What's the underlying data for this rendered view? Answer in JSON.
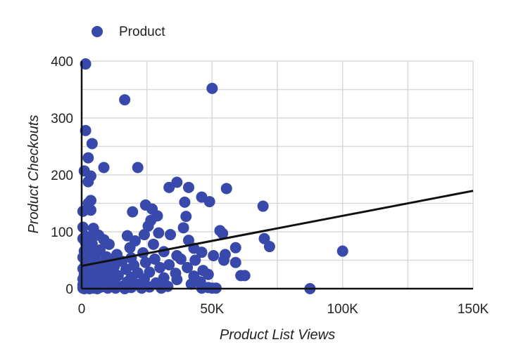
{
  "chart_data": {
    "type": "scatter",
    "title": "",
    "xlabel": "Product List Views",
    "ylabel": "Product Checkouts",
    "xlim": [
      0,
      150000
    ],
    "ylim": [
      0,
      400
    ],
    "x_ticks": [
      0,
      50000,
      100000,
      150000
    ],
    "x_tick_labels": [
      "0",
      "50K",
      "100K",
      "150K"
    ],
    "y_ticks": [
      0,
      100,
      200,
      300,
      400
    ],
    "y_tick_labels": [
      "0",
      "100",
      "200",
      "300",
      "400"
    ],
    "grid": true,
    "legend_position": "top-left",
    "colors": {
      "series": "#3949ab",
      "trendline": "#111111"
    },
    "series": [
      {
        "name": "Product",
        "points": [
          [
            1500,
            395
          ],
          [
            50000,
            352
          ],
          [
            16500,
            332
          ],
          [
            1500,
            278
          ],
          [
            4000,
            255
          ],
          [
            2500,
            230
          ],
          [
            21500,
            213
          ],
          [
            8500,
            213
          ],
          [
            1000,
            207
          ],
          [
            3500,
            198
          ],
          [
            2500,
            188
          ],
          [
            36500,
            187
          ],
          [
            33500,
            178
          ],
          [
            41000,
            178
          ],
          [
            55500,
            176
          ],
          [
            46000,
            161
          ],
          [
            49000,
            153
          ],
          [
            39500,
            152
          ],
          [
            69500,
            145
          ],
          [
            3500,
            155
          ],
          [
            2500,
            150
          ],
          [
            24500,
            147
          ],
          [
            27000,
            140
          ],
          [
            500,
            136
          ],
          [
            3500,
            138
          ],
          [
            19500,
            135
          ],
          [
            29000,
            128
          ],
          [
            40000,
            127
          ],
          [
            26500,
            120
          ],
          [
            25500,
            110
          ],
          [
            39000,
            107
          ],
          [
            500,
            108
          ],
          [
            4500,
            106
          ],
          [
            53000,
            102
          ],
          [
            29500,
            98
          ],
          [
            17500,
            93
          ],
          [
            24000,
            95
          ],
          [
            54000,
            97
          ],
          [
            34000,
            95
          ],
          [
            6500,
            94
          ],
          [
            1500,
            92
          ],
          [
            3000,
            90
          ],
          [
            500,
            88
          ],
          [
            8500,
            86
          ],
          [
            70000,
            88
          ],
          [
            20500,
            84
          ],
          [
            41000,
            85
          ],
          [
            1500,
            81
          ],
          [
            4000,
            79
          ],
          [
            10500,
            78
          ],
          [
            27500,
            78
          ],
          [
            72000,
            74
          ],
          [
            59000,
            72
          ],
          [
            18500,
            72
          ],
          [
            43000,
            71
          ],
          [
            2500,
            70
          ],
          [
            7000,
            68
          ],
          [
            1000,
            66
          ],
          [
            31500,
            65
          ],
          [
            23500,
            63
          ],
          [
            100000,
            66
          ],
          [
            46000,
            64
          ],
          [
            5500,
            61
          ],
          [
            13500,
            60
          ],
          [
            55000,
            60
          ],
          [
            36500,
            58
          ],
          [
            50500,
            58
          ],
          [
            3000,
            57
          ],
          [
            9500,
            56
          ],
          [
            500,
            55
          ],
          [
            19000,
            54
          ],
          [
            28000,
            52
          ],
          [
            38000,
            52
          ],
          [
            43500,
            50
          ],
          [
            54500,
            50
          ],
          [
            11500,
            49
          ],
          [
            15500,
            48
          ],
          [
            4500,
            47
          ],
          [
            24500,
            46
          ],
          [
            7500,
            45
          ],
          [
            59000,
            46
          ],
          [
            1500,
            44
          ],
          [
            33500,
            42
          ],
          [
            20000,
            41
          ],
          [
            2500,
            40
          ],
          [
            12500,
            39
          ],
          [
            30000,
            37
          ],
          [
            40500,
            37
          ],
          [
            9000,
            36
          ],
          [
            500,
            35
          ],
          [
            17000,
            34
          ],
          [
            5500,
            33
          ],
          [
            46500,
            32
          ],
          [
            3000,
            30
          ],
          [
            26000,
            29
          ],
          [
            21500,
            28
          ],
          [
            11000,
            27
          ],
          [
            36000,
            27
          ],
          [
            1000,
            25
          ],
          [
            48500,
            25
          ],
          [
            7000,
            24
          ],
          [
            14000,
            23
          ],
          [
            61000,
            23
          ],
          [
            62500,
            23
          ],
          [
            43000,
            22
          ],
          [
            2000,
            21
          ],
          [
            19000,
            20
          ],
          [
            9500,
            19
          ],
          [
            31500,
            19
          ],
          [
            4500,
            18
          ],
          [
            500,
            17
          ],
          [
            24000,
            17
          ],
          [
            36500,
            16
          ],
          [
            12500,
            15
          ],
          [
            6500,
            14
          ],
          [
            2500,
            13
          ],
          [
            17500,
            12
          ],
          [
            45500,
            12
          ],
          [
            1000,
            11
          ],
          [
            8500,
            10
          ],
          [
            28500,
            10
          ],
          [
            3500,
            9
          ],
          [
            21000,
            8
          ],
          [
            42000,
            8
          ],
          [
            500,
            7
          ],
          [
            11500,
            6
          ],
          [
            5500,
            5
          ],
          [
            15500,
            4
          ],
          [
            33000,
            4
          ],
          [
            2000,
            3
          ],
          [
            7500,
            3
          ],
          [
            26000,
            3
          ],
          [
            1500,
            2
          ],
          [
            19000,
            2
          ],
          [
            48500,
            2
          ],
          [
            500,
            1
          ],
          [
            4500,
            1
          ],
          [
            10000,
            1
          ],
          [
            13000,
            1
          ],
          [
            23000,
            1
          ],
          [
            30500,
            1
          ],
          [
            46000,
            1
          ],
          [
            50000,
            1
          ],
          [
            51500,
            1
          ],
          [
            87500,
            0
          ],
          [
            3000,
            0
          ],
          [
            1000,
            0
          ],
          [
            6000,
            0
          ],
          [
            16500,
            0
          ]
        ]
      }
    ],
    "trendline": {
      "x": [
        0,
        150000
      ],
      "y": [
        40,
        172
      ]
    }
  }
}
